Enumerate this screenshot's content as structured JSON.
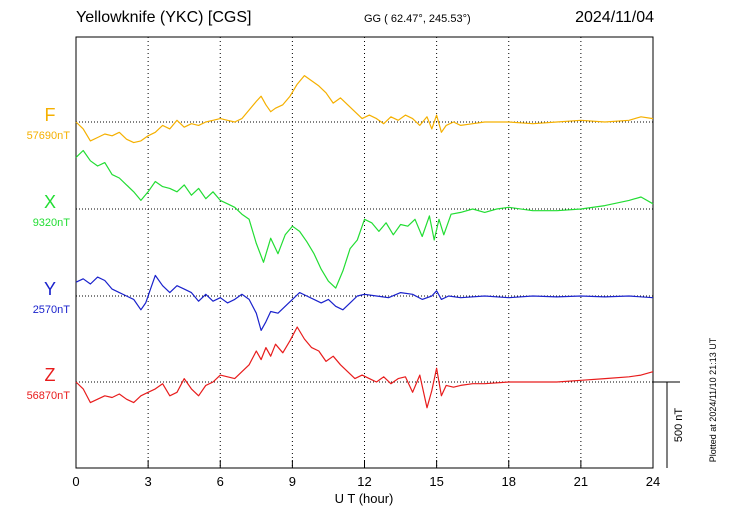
{
  "header": {
    "title": "Yellowknife (YKC)  [CGS]",
    "coords": "GG ( 62.47°, 245.53°)",
    "date": "2024/11/04"
  },
  "plotted_note": "Plotted at 2024/11/10 21:13 UT",
  "scale_bar_label": "500 nT",
  "chart_data": {
    "type": "line",
    "xlabel": "U T (hour)",
    "xlim": [
      0,
      24
    ],
    "xticks": [
      0,
      3,
      6,
      9,
      12,
      15,
      18,
      21,
      24
    ],
    "grid": true,
    "scale_nT": 500,
    "series": [
      {
        "name": "F",
        "baseline": "57690nT",
        "color": "#f5b000",
        "x": [
          0,
          0.3,
          0.6,
          0.9,
          1.2,
          1.5,
          1.8,
          2.1,
          2.4,
          2.7,
          3.0,
          3.3,
          3.6,
          3.9,
          4.2,
          4.5,
          4.8,
          5.1,
          5.4,
          5.7,
          6.0,
          6.3,
          6.6,
          6.9,
          7.2,
          7.5,
          7.7,
          7.9,
          8.1,
          8.3,
          8.6,
          8.9,
          9.2,
          9.5,
          9.8,
          10.1,
          10.4,
          10.7,
          11.0,
          11.3,
          11.6,
          11.9,
          12.2,
          12.5,
          12.8,
          13.1,
          13.4,
          13.7,
          14.0,
          14.3,
          14.6,
          14.8,
          15.0,
          15.2,
          15.4,
          15.7,
          16.0,
          16.5,
          17.0,
          18.0,
          19.0,
          20.0,
          21.0,
          22.0,
          23.0,
          23.5,
          24.0
        ],
        "y": [
          0,
          -40,
          -110,
          -90,
          -70,
          -80,
          -60,
          -100,
          -120,
          -110,
          -80,
          -60,
          -20,
          -40,
          10,
          -30,
          -10,
          -20,
          0,
          10,
          20,
          10,
          0,
          20,
          70,
          120,
          150,
          100,
          60,
          80,
          100,
          150,
          220,
          270,
          240,
          210,
          170,
          110,
          140,
          100,
          60,
          20,
          40,
          20,
          -10,
          30,
          10,
          40,
          20,
          -20,
          30,
          -40,
          40,
          -60,
          -20,
          0,
          -20,
          -10,
          0,
          0,
          -10,
          0,
          10,
          0,
          10,
          30,
          20
        ]
      },
      {
        "name": "X",
        "baseline": "9320nT",
        "color": "#22dd33",
        "x": [
          0,
          0.3,
          0.6,
          0.9,
          1.2,
          1.5,
          1.8,
          2.1,
          2.4,
          2.7,
          3.0,
          3.3,
          3.6,
          3.9,
          4.2,
          4.5,
          4.8,
          5.1,
          5.4,
          5.7,
          6.0,
          6.3,
          6.6,
          6.9,
          7.2,
          7.5,
          7.8,
          8.1,
          8.4,
          8.7,
          9.0,
          9.3,
          9.6,
          9.9,
          10.2,
          10.5,
          10.8,
          11.1,
          11.4,
          11.7,
          12.0,
          12.3,
          12.6,
          12.9,
          13.2,
          13.5,
          13.8,
          14.1,
          14.4,
          14.7,
          14.9,
          15.1,
          15.3,
          15.6,
          16.0,
          16.5,
          17.0,
          17.5,
          18.0,
          19.0,
          20.0,
          21.0,
          22.0,
          23.0,
          23.5,
          24.0
        ],
        "y": [
          300,
          340,
          280,
          250,
          270,
          200,
          180,
          140,
          100,
          50,
          100,
          160,
          130,
          120,
          100,
          140,
          80,
          120,
          60,
          100,
          50,
          30,
          10,
          -30,
          -60,
          -200,
          -310,
          -170,
          -260,
          -150,
          -100,
          -130,
          -190,
          -260,
          -350,
          -420,
          -460,
          -360,
          -230,
          -180,
          -60,
          -80,
          -130,
          -80,
          -150,
          -90,
          -100,
          -60,
          -160,
          -40,
          -180,
          -60,
          -150,
          -30,
          -20,
          0,
          -20,
          0,
          10,
          -10,
          -10,
          0,
          20,
          50,
          70,
          30
        ]
      },
      {
        "name": "Y",
        "baseline": "2570nT",
        "color": "#1a22cc",
        "x": [
          0,
          0.3,
          0.6,
          0.9,
          1.2,
          1.5,
          1.8,
          2.1,
          2.4,
          2.7,
          2.9,
          3.1,
          3.3,
          3.6,
          3.9,
          4.2,
          4.5,
          4.8,
          5.1,
          5.4,
          5.7,
          6.0,
          6.3,
          6.6,
          6.9,
          7.2,
          7.5,
          7.7,
          7.9,
          8.1,
          8.4,
          8.7,
          9.0,
          9.3,
          9.6,
          9.9,
          10.2,
          10.5,
          10.8,
          11.1,
          11.4,
          11.7,
          12.0,
          12.5,
          13.0,
          13.5,
          14.0,
          14.4,
          14.8,
          15.0,
          15.2,
          15.5,
          16.0,
          17.0,
          18.0,
          19.0,
          20.0,
          21.0,
          22.0,
          23.0,
          24.0
        ],
        "y": [
          80,
          100,
          70,
          110,
          90,
          40,
          20,
          0,
          -20,
          -80,
          -40,
          40,
          120,
          60,
          20,
          60,
          40,
          20,
          -30,
          10,
          -30,
          -10,
          -40,
          -20,
          10,
          -20,
          -100,
          -200,
          -150,
          -90,
          -100,
          -60,
          -20,
          20,
          0,
          -20,
          -40,
          -20,
          -60,
          -80,
          -40,
          0,
          10,
          0,
          -10,
          20,
          10,
          -20,
          0,
          30,
          -20,
          0,
          -10,
          0,
          -10,
          0,
          -5,
          0,
          -5,
          0,
          -10
        ]
      },
      {
        "name": "Z",
        "baseline": "56870nT",
        "color": "#e81c1c",
        "x": [
          0,
          0.3,
          0.6,
          0.9,
          1.2,
          1.5,
          1.8,
          2.1,
          2.4,
          2.7,
          3.0,
          3.3,
          3.6,
          3.9,
          4.2,
          4.5,
          4.8,
          5.1,
          5.4,
          5.7,
          6.0,
          6.3,
          6.6,
          6.9,
          7.2,
          7.5,
          7.7,
          7.9,
          8.1,
          8.3,
          8.6,
          8.9,
          9.2,
          9.5,
          9.8,
          10.1,
          10.4,
          10.7,
          11.0,
          11.3,
          11.6,
          11.9,
          12.2,
          12.5,
          12.8,
          13.1,
          13.4,
          13.7,
          14.0,
          14.3,
          14.6,
          14.8,
          15.0,
          15.2,
          15.4,
          15.7,
          16.0,
          16.5,
          17.0,
          18.0,
          19.0,
          20.0,
          21.0,
          22.0,
          23.0,
          23.5,
          24.0
        ],
        "y": [
          0,
          -40,
          -120,
          -100,
          -80,
          -90,
          -70,
          -100,
          -120,
          -80,
          -60,
          -40,
          -10,
          -80,
          -60,
          20,
          -40,
          -80,
          -20,
          0,
          40,
          30,
          20,
          60,
          100,
          180,
          130,
          200,
          150,
          220,
          170,
          240,
          320,
          250,
          200,
          180,
          120,
          150,
          100,
          60,
          20,
          40,
          20,
          0,
          30,
          -10,
          20,
          30,
          -60,
          40,
          -150,
          -50,
          80,
          -80,
          -20,
          -30,
          -20,
          -10,
          -10,
          0,
          0,
          0,
          10,
          20,
          30,
          40,
          60
        ]
      }
    ]
  }
}
